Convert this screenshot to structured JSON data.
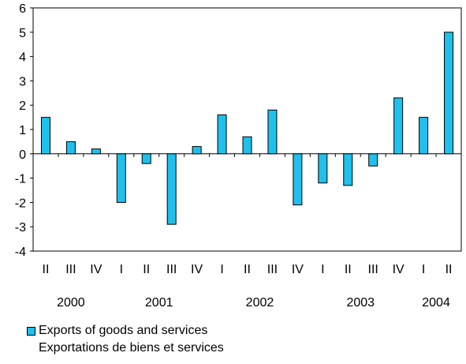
{
  "chart_data": {
    "type": "bar",
    "categories": [
      "II",
      "III",
      "IV",
      "I",
      "II",
      "III",
      "IV",
      "I",
      "II",
      "III",
      "IV",
      "I",
      "II",
      "III",
      "IV",
      "I",
      "II"
    ],
    "year_labels": [
      {
        "label": "2000",
        "from_index": 0,
        "to_index": 2
      },
      {
        "label": "2001",
        "from_index": 3,
        "to_index": 6
      },
      {
        "label": "2002",
        "from_index": 7,
        "to_index": 10
      },
      {
        "label": "2003",
        "from_index": 11,
        "to_index": 14
      },
      {
        "label": "2004",
        "from_index": 15,
        "to_index": 16
      }
    ],
    "series": [
      {
        "name": "Exports of goods and services",
        "name_fr": "Exportations de biens et services",
        "values": [
          1.5,
          0.5,
          0.2,
          -2.0,
          -0.4,
          -2.9,
          0.3,
          1.6,
          0.7,
          1.8,
          -2.1,
          -1.2,
          -1.3,
          -0.5,
          2.3,
          1.5,
          5.0
        ]
      }
    ],
    "yticks": [
      6,
      5,
      4,
      3,
      2,
      1,
      0,
      -1,
      -2,
      -3,
      -4
    ],
    "ylim": [
      -4,
      6
    ],
    "title": "",
    "xlabel": "",
    "ylabel": "",
    "legend_position": "bottom-left",
    "grid": false,
    "colors": {
      "bar_fill": "#1FC0EC",
      "bar_stroke": "#000000",
      "axis": "#000000",
      "background": "#FFFFFF"
    }
  }
}
